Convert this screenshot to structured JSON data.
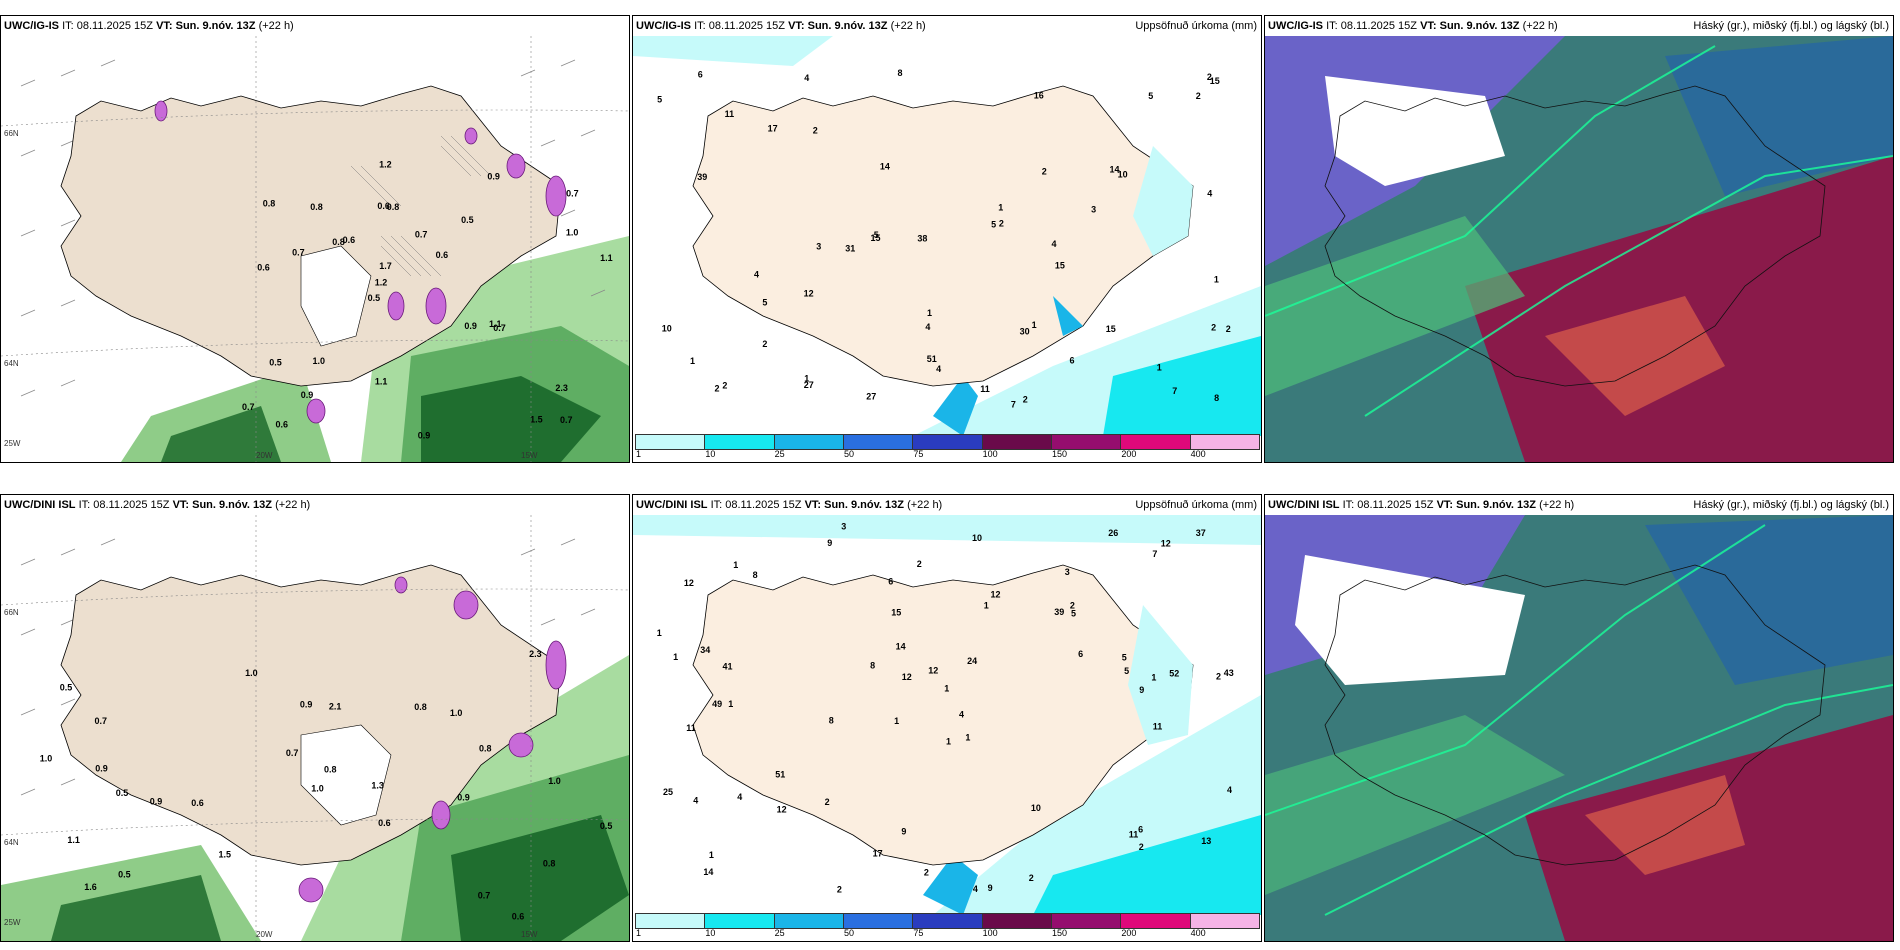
{
  "panels": [
    {
      "model": "UWC/IG-IS",
      "it_label": "IT:",
      "it_value": "08.11.2025 15Z",
      "vt_label": "VT:",
      "vt_value": "Sun. 9.nóv. 13Z",
      "lead": "(+22 h)",
      "right_label": ""
    },
    {
      "model": "UWC/IG-IS",
      "it_label": "IT:",
      "it_value": "08.11.2025 15Z",
      "vt_label": "VT:",
      "vt_value": "Sun. 9.nóv. 13Z",
      "lead": "(+22 h)",
      "right_label": "Uppsöfnuð úrkoma (mm)"
    },
    {
      "model": "UWC/IG-IS",
      "it_label": "IT:",
      "it_value": "08.11.2025 15Z",
      "vt_label": "VT:",
      "vt_value": "Sun. 9.nóv. 13Z",
      "lead": "(+22 h)",
      "right_label": "Háský (gr.), miðský (fj.bl.) og lágský (bl.)"
    },
    {
      "model": "UWC/DINI ISL",
      "it_label": "IT:",
      "it_value": "08.11.2025 15Z",
      "vt_label": "VT:",
      "vt_value": "Sun. 9.nóv. 13Z",
      "lead": "(+22 h)",
      "right_label": ""
    },
    {
      "model": "UWC/DINI ISL",
      "it_label": "IT:",
      "it_value": "08.11.2025 15Z",
      "vt_label": "VT:",
      "vt_value": "Sun. 9.nóv. 13Z",
      "lead": "(+22 h)",
      "right_label": "Uppsöfnuð úrkoma (mm)"
    },
    {
      "model": "UWC/DINI ISL",
      "it_label": "IT:",
      "it_value": "08.11.2025 15Z",
      "vt_label": "VT:",
      "vt_value": "Sun. 9.nóv. 13Z",
      "lead": "(+22 h)",
      "right_label": "Háský (gr.), miðský (fj.bl.) og lágský (bl.)"
    }
  ],
  "axes": {
    "lat_66": "66N",
    "lat_64": "64N",
    "lon_20": "20W",
    "lon_15": "15W",
    "lon_25": "25W"
  },
  "precip_colorbar": {
    "ticks": [
      "1",
      "10",
      "25",
      "50",
      "75",
      "100",
      "150",
      "200",
      "400"
    ],
    "colors": [
      "#c6fafa",
      "#17e8f0",
      "#1ab5e8",
      "#2a6fe0",
      "#2a3cbf",
      "#6a0a4a",
      "#950d6e",
      "#e0087a",
      "#f5b3e6"
    ]
  },
  "panel1_labels": [
    "0.7",
    "0.6",
    "0.7",
    "0.5",
    "0.5",
    "0.6",
    "0.6",
    "0.7",
    "0.5",
    "0.6",
    "0.7",
    "0.9",
    "0.8",
    "0.6",
    "0.7",
    "0.8",
    "1.2",
    "1.1",
    "0.9",
    "1.0",
    "1.2",
    "1.1",
    "1.7",
    "0.8",
    "0.9",
    "1.0",
    "1.5",
    "2.3",
    "1.1",
    "0.9",
    "0.8",
    "0.7"
  ],
  "panel2_labels": [
    "27",
    "7",
    "1",
    "6",
    "4",
    "11",
    "3",
    "7",
    "8",
    "14",
    "5",
    "4",
    "5",
    "4",
    "16",
    "5",
    "39",
    "27",
    "31",
    "5",
    "30",
    "15",
    "1",
    "2",
    "10",
    "4",
    "10",
    "5",
    "6",
    "15",
    "38",
    "2",
    "1",
    "2",
    "2",
    "4",
    "2",
    "1",
    "2",
    "1",
    "2",
    "3",
    "2",
    "2",
    "2",
    "1",
    "1",
    "11",
    "17",
    "51",
    "2",
    "4",
    "8",
    "15",
    "12",
    "14",
    "15"
  ],
  "panel4_labels": [
    "0.6",
    "0.5",
    "0.6",
    "0.5",
    "0.8",
    "0.7",
    "0.5",
    "0.6",
    "1.0",
    "0.9",
    "0.8",
    "0.7",
    "1.5",
    "1.0",
    "1.3",
    "1.1",
    "0.9",
    "0.8",
    "1.0",
    "1.6",
    "2.3",
    "2.1",
    "0.8",
    "0.5",
    "1.0",
    "0.9",
    "0.9",
    "1.0",
    "0.7"
  ],
  "panel5_labels": [
    "3",
    "3",
    "2",
    "1",
    "1",
    "1",
    "12",
    "39",
    "11",
    "1",
    "1",
    "14",
    "9",
    "8",
    "4",
    "9",
    "9",
    "26",
    "6",
    "51",
    "41",
    "49",
    "43",
    "52",
    "25",
    "34",
    "12",
    "5",
    "6",
    "4",
    "11",
    "12",
    "4",
    "8",
    "10",
    "4",
    "5",
    "17",
    "37",
    "2",
    "1",
    "2",
    "2",
    "1",
    "2",
    "5",
    "2",
    "2",
    "1",
    "4",
    "6",
    "9",
    "24",
    "7",
    "10",
    "12",
    "14",
    "12",
    "12",
    "15",
    "13",
    "11",
    "8",
    "2",
    "1",
    "1",
    "1"
  ],
  "cloud_legend": {
    "high": "Háský (gr.)",
    "mid": "miðský (fj.bl.)",
    "low": "lágský (bl.)"
  }
}
